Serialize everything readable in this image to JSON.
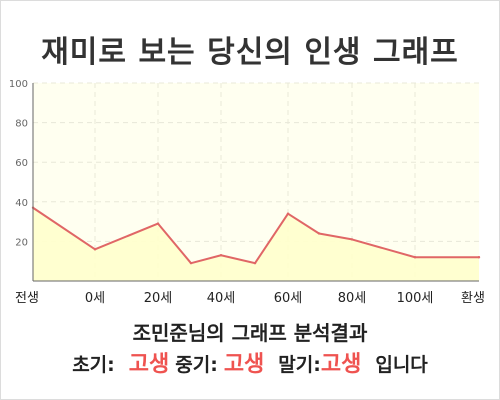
{
  "title": "재미로 보는 당신의 인생 그래프",
  "colors": {
    "line": "#e06666",
    "fill": "#ffffcc",
    "plot_bg": "#fffff0",
    "grid": "#e8e8d8",
    "axis": "#666666",
    "highlight": "#ef5350",
    "text": "#222222"
  },
  "chart_data": {
    "type": "area",
    "title": "재미로 보는 당신의 인생 그래프",
    "xlabel": "",
    "ylabel": "",
    "x_ticks": [
      "전생",
      "0세",
      "20세",
      "40세",
      "60세",
      "80세",
      "100세",
      "환생"
    ],
    "ylim": [
      0,
      100
    ],
    "y_ticks": [
      20,
      40,
      60,
      80,
      100
    ],
    "grid": true,
    "legend": "none",
    "series": [
      {
        "points": [
          {
            "x": "전생",
            "y": 37
          },
          {
            "x": "0세",
            "y": 16
          },
          {
            "x": "20세",
            "y": 29
          },
          {
            "x": "30세",
            "y": 9
          },
          {
            "x": "40세",
            "y": 13
          },
          {
            "x": "50세",
            "y": 9
          },
          {
            "x": "60세",
            "y": 34
          },
          {
            "x": "70세",
            "y": 24
          },
          {
            "x": "80세",
            "y": 21
          },
          {
            "x": "100세",
            "y": 12
          },
          {
            "x": "환생",
            "y": 12
          }
        ]
      }
    ]
  },
  "summary": {
    "name_line": "조민준님의 그래프 분석결과",
    "early_label": "초기:",
    "early_value": "고생",
    "mid_label": "중기:",
    "mid_value": "고생",
    "late_label": "말기:",
    "late_value": "고생",
    "ending": "입니다"
  }
}
